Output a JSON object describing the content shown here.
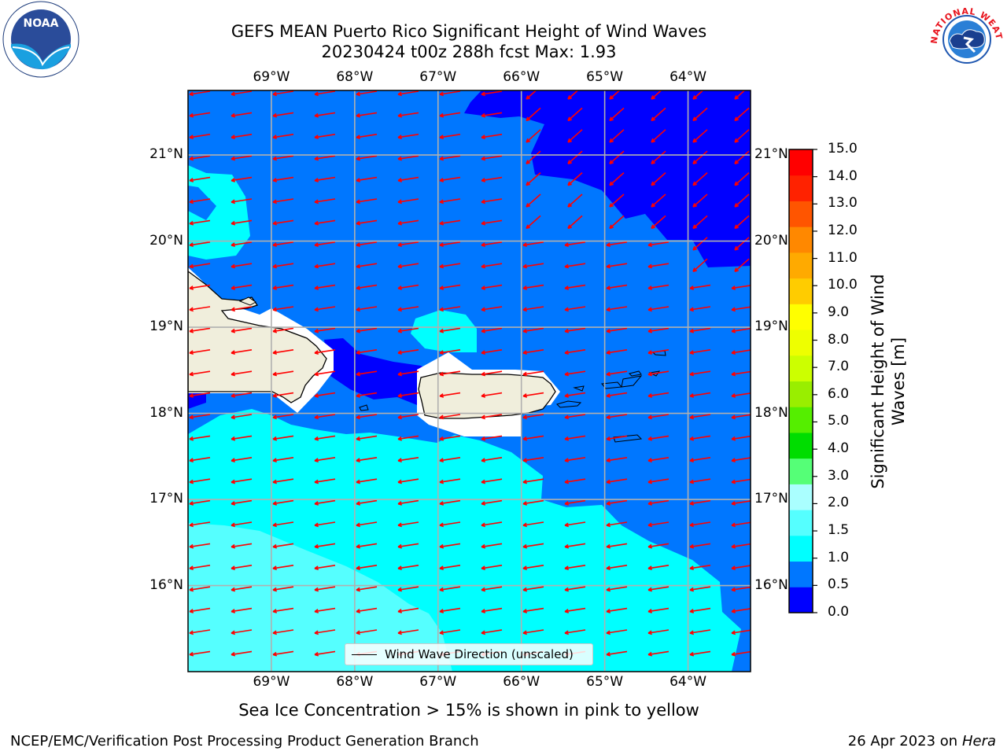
{
  "header": {
    "title": "GEFS MEAN Puerto Rico Significant Height of Wind Waves",
    "subtitle": "20230424 t00z 288h fcst   Max: 1.93"
  },
  "logos": {
    "noaa": "NOAA",
    "nws": "NATIONAL WEATHER SERVICE"
  },
  "map": {
    "lon_labels": [
      "69°W",
      "68°W",
      "67°W",
      "66°W",
      "65°W",
      "64°W"
    ],
    "lat_labels": [
      "21°N",
      "20°N",
      "19°N",
      "18°N",
      "17°N",
      "16°N"
    ],
    "extent": {
      "lon_min": -70.0,
      "lon_max": -63.25,
      "lat_min": 15.0,
      "lat_max": 21.75
    },
    "vector_color": "#ff0000",
    "land_color": "#f0eedc",
    "legend_label": "Wind Wave Direction (unscaled)"
  },
  "colorbar": {
    "title": "Significant Height of Wind Waves [m]",
    "title_line1": "Significant Height of Wind",
    "title_line2": "Waves [m]",
    "tick_labels": [
      "15.0",
      "14.0",
      "13.0",
      "12.0",
      "11.0",
      "10.0",
      "9.0",
      "8.0",
      "7.0",
      "6.0",
      "5.0",
      "4.0",
      "3.0",
      "2.0",
      "1.5",
      "1.0",
      "0.5",
      "0.0"
    ],
    "colors": [
      "#0000ff",
      "#0077ff",
      "#00ffff",
      "#55ffff",
      "#aaffff",
      "#55ff77",
      "#00dd00",
      "#55ee00",
      "#99ee00",
      "#ccff00",
      "#eeff00",
      "#ffff00",
      "#ffcc00",
      "#ffaa00",
      "#ff8800",
      "#ff5500",
      "#ff2200",
      "#ff0000"
    ]
  },
  "chart_data": {
    "type": "heatmap",
    "variable": "Significant Height of Wind Waves",
    "units": "m",
    "max": 1.93,
    "contour_levels": [
      0.0,
      0.5,
      1.0,
      1.5,
      2.0,
      3.0,
      4.0,
      5.0,
      6.0,
      7.0,
      8.0,
      9.0,
      10.0,
      11.0,
      12.0,
      13.0,
      14.0,
      15.0
    ]
  },
  "notes": {
    "ice": "Sea Ice Concentration > 15% is shown in pink to yellow"
  },
  "footer": {
    "left": "NCEP/EMC/Verification Post Processing Product Generation Branch",
    "date": "26 Apr 2023 on ",
    "host": "Hera"
  }
}
